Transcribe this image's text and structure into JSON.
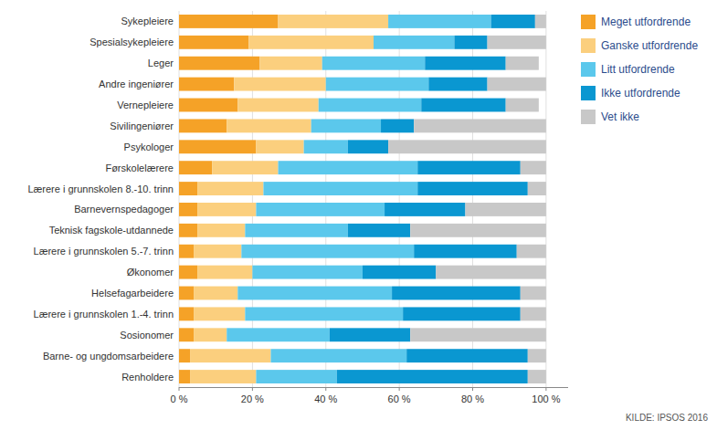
{
  "chart_data": {
    "type": "bar",
    "orientation": "horizontal",
    "stacked": true,
    "categories": [
      "Sykepleiere",
      "Spesialsykepleiere",
      "Leger",
      "Andre ingeniører",
      "Vernepleiere",
      "Sivilingeniører",
      "Psykologer",
      "Førskolelærere",
      "Lærere i grunnskolen 8.-10. trinn",
      "Barnevernspedagoger",
      "Teknisk fagskole-utdannede",
      "Lærere i grunnskolen 5.-7. trinn",
      "Økonomer",
      "Helsefagarbeidere",
      "Lærere i grunnskolen 1.-4. trinn",
      "Sosionomer",
      "Barne- og ungdomsarbeidere",
      "Renholdere"
    ],
    "series": [
      {
        "name": "Meget utfordrende",
        "color": "#F5A227",
        "values": [
          27,
          19,
          22,
          15,
          16,
          13,
          21,
          9,
          5,
          5,
          5,
          4,
          5,
          4,
          4,
          4,
          3,
          3
        ]
      },
      {
        "name": "Ganske utfordrende",
        "color": "#FBCF7E",
        "values": [
          30,
          34,
          17,
          25,
          22,
          23,
          13,
          18,
          18,
          16,
          13,
          13,
          15,
          12,
          14,
          9,
          22,
          18
        ]
      },
      {
        "name": "Litt utfordrende",
        "color": "#5BC8EC",
        "values": [
          28,
          22,
          28,
          28,
          28,
          19,
          12,
          38,
          42,
          35,
          28,
          47,
          30,
          42,
          43,
          28,
          37,
          22
        ]
      },
      {
        "name": "Ikke utfordrende",
        "color": "#0A97D1",
        "values": [
          12,
          9,
          22,
          16,
          23,
          9,
          11,
          28,
          30,
          22,
          17,
          28,
          20,
          35,
          32,
          22,
          33,
          52
        ]
      },
      {
        "name": "Vet ikke",
        "color": "#C8C8C8",
        "values": [
          3,
          16,
          9,
          16,
          9,
          36,
          43,
          7,
          5,
          22,
          37,
          8,
          30,
          7,
          7,
          37,
          5,
          5
        ]
      }
    ],
    "xlim": [
      0,
      106
    ],
    "xticks": [
      {
        "value": 0,
        "label": "0 %"
      },
      {
        "value": 20,
        "label": "20 %"
      },
      {
        "value": 40,
        "label": "40 %"
      },
      {
        "value": 60,
        "label": "60 %"
      },
      {
        "value": 80,
        "label": "80 %"
      },
      {
        "value": 100,
        "label": "100 %"
      }
    ],
    "grid": true,
    "legend": "right",
    "annotations": [
      "KILDE: IPSOS 2016"
    ]
  }
}
